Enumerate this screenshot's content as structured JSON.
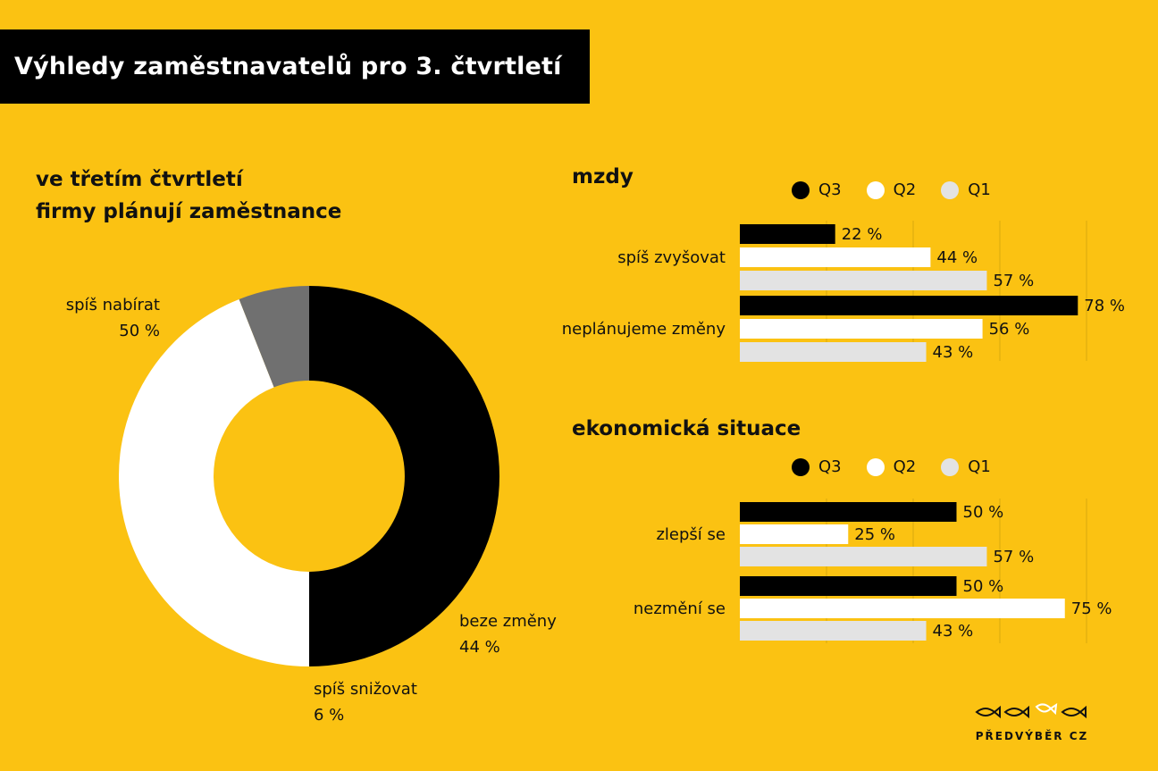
{
  "header": {
    "title": "Výhledy zaměstnavatelů pro 3. čtvrtletí"
  },
  "donut": {
    "heading_line1": "ve třetím čtvrtletí",
    "heading_line2": "firmy plánují zaměstnance",
    "slices": [
      {
        "label": "spíš nabírat",
        "value": 50,
        "value_label": "50 %",
        "color": "#000000"
      },
      {
        "label": "beze změny",
        "value": 44,
        "value_label": "44 %",
        "color": "#FFFFFF"
      },
      {
        "label": "spíš snižovat",
        "value": 6,
        "value_label": "6 %",
        "color": "#707070"
      }
    ]
  },
  "colors": {
    "background": "#FBC212",
    "q3": "#000000",
    "q2": "#FFFFFF",
    "q1": "#E3E3E3"
  },
  "chart_data": [
    {
      "type": "pie",
      "title": "ve třetím čtvrtletí firmy plánují zaměstnance",
      "categories": [
        "spíš nabírat",
        "beze změny",
        "spíš snižovat"
      ],
      "values": [
        50,
        44,
        6
      ]
    },
    {
      "type": "bar",
      "orientation": "horizontal",
      "title": "mzdy",
      "categories": [
        "spíš zvyšovat",
        "neplánujeme změny"
      ],
      "series": [
        {
          "name": "Q3",
          "values": [
            22,
            78
          ],
          "labels": [
            "22 %",
            "78 %"
          ]
        },
        {
          "name": "Q2",
          "values": [
            44,
            56
          ],
          "labels": [
            "44 %",
            "56 %"
          ]
        },
        {
          "name": "Q1",
          "values": [
            57,
            43
          ],
          "labels": [
            "57 %",
            "43 %"
          ]
        }
      ],
      "xlim": [
        0,
        80
      ],
      "legend": "top",
      "grid": true
    },
    {
      "type": "bar",
      "orientation": "horizontal",
      "title": "ekonomická situace",
      "categories": [
        "zlepší se",
        "nezmění se"
      ],
      "series": [
        {
          "name": "Q3",
          "values": [
            50,
            50
          ],
          "labels": [
            "50 %",
            "50 %"
          ]
        },
        {
          "name": "Q2",
          "values": [
            25,
            75
          ],
          "labels": [
            "25 %",
            "75 %"
          ]
        },
        {
          "name": "Q1",
          "values": [
            57,
            43
          ],
          "labels": [
            "57 %",
            "43 %"
          ]
        }
      ],
      "xlim": [
        0,
        80
      ],
      "legend": "top",
      "grid": true
    }
  ],
  "logo": {
    "text": "PŘEDVÝBĚR CZ"
  }
}
